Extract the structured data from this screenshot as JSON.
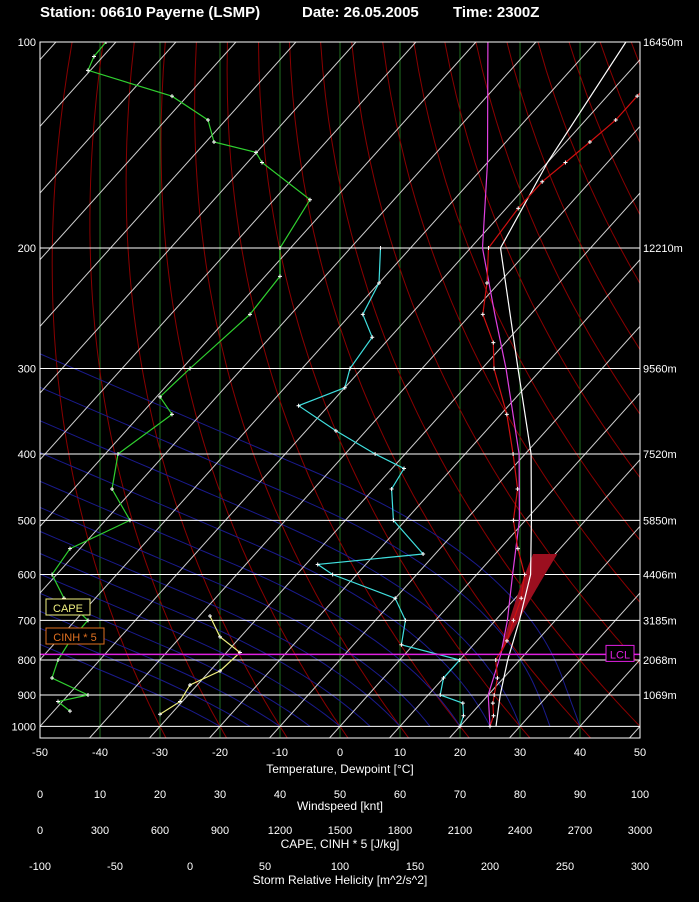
{
  "header": {
    "station": "Station: 06610 Payerne (LSMP)",
    "date": "Date: 26.05.2005",
    "time": "Time: 2300Z"
  },
  "chart_data": {
    "type": "line",
    "pressure_levels": [
      100,
      200,
      300,
      400,
      500,
      600,
      700,
      800,
      900,
      1000
    ],
    "height_labels": [
      {
        "p": 100,
        "label": "16450m"
      },
      {
        "p": 200,
        "label": "12210m"
      },
      {
        "p": 300,
        "label": "9560m"
      },
      {
        "p": 400,
        "label": "7520m"
      },
      {
        "p": 500,
        "label": "5850m"
      },
      {
        "p": 600,
        "label": "4406m"
      },
      {
        "p": 700,
        "label": "3185m"
      },
      {
        "p": 800,
        "label": "2068m"
      },
      {
        "p": 900,
        "label": "1069m"
      }
    ],
    "lcl_pressure": 785,
    "lcl_label": "LCL",
    "cape_label": "CAPE",
    "cinh_label": "CINH * 5",
    "temperature": [
      {
        "p": 1000,
        "t": 25
      },
      {
        "p": 965,
        "t": 24
      },
      {
        "p": 925,
        "t": 22
      },
      {
        "p": 900,
        "t": 21
      },
      {
        "p": 850,
        "t": 19
      },
      {
        "p": 800,
        "t": 16
      },
      {
        "p": 750,
        "t": 15
      },
      {
        "p": 700,
        "t": 13
      },
      {
        "p": 650,
        "t": 11
      },
      {
        "p": 600,
        "t": 8
      },
      {
        "p": 550,
        "t": 3
      },
      {
        "p": 500,
        "t": -2
      },
      {
        "p": 450,
        "t": -6
      },
      {
        "p": 400,
        "t": -12
      },
      {
        "p": 350,
        "t": -19
      },
      {
        "p": 300,
        "t": -28
      },
      {
        "p": 275,
        "t": -32
      },
      {
        "p": 250,
        "t": -38
      },
      {
        "p": 225,
        "t": -42
      },
      {
        "p": 200,
        "t": -47
      },
      {
        "p": 175,
        "t": -48
      },
      {
        "p": 160,
        "t": -48
      },
      {
        "p": 150,
        "t": -47
      },
      {
        "p": 140,
        "t": -46
      },
      {
        "p": 130,
        "t": -45
      },
      {
        "p": 120,
        "t": -45
      },
      {
        "p": 110,
        "t": -45
      },
      {
        "p": 100,
        "t": -44
      }
    ],
    "dewpoint": [
      {
        "p": 1000,
        "t": 20
      },
      {
        "p": 965,
        "t": 19
      },
      {
        "p": 925,
        "t": 17
      },
      {
        "p": 900,
        "t": 12
      },
      {
        "p": 850,
        "t": 10
      },
      {
        "p": 800,
        "t": 10
      },
      {
        "p": 760,
        "t": -2
      },
      {
        "p": 700,
        "t": -5
      },
      {
        "p": 650,
        "t": -10
      },
      {
        "p": 600,
        "t": -24
      },
      {
        "p": 580,
        "t": -28
      },
      {
        "p": 560,
        "t": -12
      },
      {
        "p": 500,
        "t": -22
      },
      {
        "p": 450,
        "t": -27
      },
      {
        "p": 420,
        "t": -28
      },
      {
        "p": 400,
        "t": -35
      },
      {
        "p": 370,
        "t": -45
      },
      {
        "p": 340,
        "t": -55
      },
      {
        "p": 320,
        "t": -50
      },
      {
        "p": 300,
        "t": -52
      },
      {
        "p": 270,
        "t": -53
      },
      {
        "p": 250,
        "t": -58
      },
      {
        "p": 225,
        "t": -60
      },
      {
        "p": 200,
        "t": -65
      }
    ],
    "parcel": [
      {
        "p": 1000,
        "t": 25
      },
      {
        "p": 900,
        "t": 20
      },
      {
        "p": 785,
        "t": 16
      },
      {
        "p": 700,
        "t": 12
      },
      {
        "p": 600,
        "t": 6
      },
      {
        "p": 500,
        "t": -1
      },
      {
        "p": 400,
        "t": -11
      },
      {
        "p": 300,
        "t": -26
      },
      {
        "p": 250,
        "t": -36
      },
      {
        "p": 200,
        "t": -48
      },
      {
        "p": 150,
        "t": -60
      },
      {
        "p": 100,
        "t": -78
      }
    ],
    "virtual_temp": [
      {
        "p": 1000,
        "t": 26
      },
      {
        "p": 900,
        "t": 22
      },
      {
        "p": 800,
        "t": 18
      },
      {
        "p": 700,
        "t": 14
      },
      {
        "p": 600,
        "t": 9
      },
      {
        "p": 500,
        "t": 1
      },
      {
        "p": 400,
        "t": -9
      },
      {
        "p": 300,
        "t": -24
      },
      {
        "p": 200,
        "t": -45
      },
      {
        "p": 150,
        "t": -50
      },
      {
        "p": 100,
        "t": -55
      }
    ],
    "windspeed": [
      {
        "p": 950,
        "w": 5
      },
      {
        "p": 920,
        "w": 3
      },
      {
        "p": 900,
        "w": 8
      },
      {
        "p": 850,
        "w": 2
      },
      {
        "p": 800,
        "w": 3
      },
      {
        "p": 750,
        "w": 5
      },
      {
        "p": 700,
        "w": 8
      },
      {
        "p": 650,
        "w": 4
      },
      {
        "p": 600,
        "w": 2
      },
      {
        "p": 550,
        "w": 5
      },
      {
        "p": 500,
        "w": 15
      },
      {
        "p": 450,
        "w": 12
      },
      {
        "p": 400,
        "w": 13
      },
      {
        "p": 350,
        "w": 22
      },
      {
        "p": 330,
        "w": 20
      },
      {
        "p": 300,
        "w": 25
      },
      {
        "p": 250,
        "w": 35
      },
      {
        "p": 220,
        "w": 40
      },
      {
        "p": 200,
        "w": 40
      },
      {
        "p": 170,
        "w": 45
      },
      {
        "p": 150,
        "w": 37
      },
      {
        "p": 145,
        "w": 36
      },
      {
        "p": 140,
        "w": 29
      },
      {
        "p": 130,
        "w": 28
      },
      {
        "p": 120,
        "w": 22
      },
      {
        "p": 110,
        "w": 8
      },
      {
        "p": 105,
        "w": 9
      },
      {
        "p": 100,
        "w": 11
      }
    ],
    "cape_profile": [
      {
        "p": 960,
        "v": 600
      },
      {
        "p": 920,
        "v": 700
      },
      {
        "p": 870,
        "v": 750
      },
      {
        "p": 830,
        "v": 900
      },
      {
        "p": 780,
        "v": 1000
      },
      {
        "p": 740,
        "v": 900
      },
      {
        "p": 690,
        "v": 850
      }
    ],
    "xaxes": [
      {
        "label": "Temperature, Dewpoint  [°C]",
        "ticks": [
          "-50",
          "-40",
          "-30",
          "-20",
          "-10",
          "0",
          "10",
          "20",
          "30",
          "40",
          "50"
        ]
      },
      {
        "label": "Windspeed  [knt]",
        "ticks": [
          "0",
          "10",
          "20",
          "30",
          "40",
          "50",
          "60",
          "70",
          "80",
          "90",
          "100"
        ]
      },
      {
        "label": "CAPE, CINH * 5  [J/kg]",
        "ticks": [
          "0",
          "300",
          "600",
          "900",
          "1200",
          "1500",
          "1800",
          "2100",
          "2400",
          "2700",
          "3000"
        ]
      },
      {
        "label": "Storm Relative Helicity  [m^2/s^2]",
        "ticks": [
          "-100",
          "-50",
          "0",
          "50",
          "100",
          "150",
          "200",
          "250",
          "300"
        ]
      }
    ],
    "yscale": "log",
    "ylim": [
      1000,
      100
    ],
    "xlim": [
      -50,
      50
    ]
  }
}
